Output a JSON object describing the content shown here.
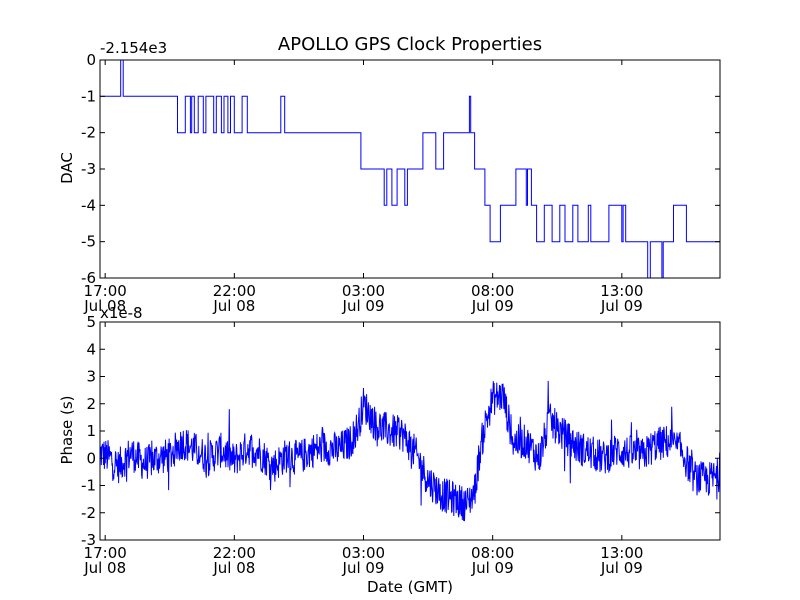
{
  "figure": {
    "title": "APOLLO GPS Clock Properties",
    "xlabel": "Date (GMT)",
    "x_ticks": [
      {
        "time": "17:00",
        "date": "Jul 08"
      },
      {
        "time": "22:00",
        "date": "Jul 08"
      },
      {
        "time": "03:00",
        "date": "Jul 09"
      },
      {
        "time": "08:00",
        "date": "Jul 09"
      },
      {
        "time": "13:00",
        "date": "Jul 09"
      }
    ],
    "x_tick_hours": [
      17,
      22,
      27,
      32,
      37
    ],
    "x_range_hours": [
      16.8,
      40.8
    ]
  },
  "chart_data": [
    {
      "type": "line",
      "ylabel": "DAC",
      "offset_label": "-2.154e3",
      "ylim": [
        -6,
        0
      ],
      "y_ticks": [
        0,
        -1,
        -2,
        -3,
        -4,
        -5,
        -6
      ],
      "x_ticks_hours": [
        17,
        22,
        27,
        32,
        37
      ],
      "color": "#0000ff",
      "series": [
        {
          "x_hours": [
            16.8,
            17.6,
            17.6,
            17.7,
            17.7,
            19.8,
            19.8,
            20.1,
            20.1,
            20.3,
            20.3,
            20.35,
            20.35,
            20.45,
            20.45,
            20.6,
            20.6,
            20.8,
            20.8,
            20.9,
            20.9,
            21.2,
            21.2,
            21.3,
            21.3,
            21.5,
            21.5,
            21.6,
            21.6,
            21.75,
            21.75,
            21.85,
            21.85,
            22.0,
            22.0,
            22.3,
            22.3,
            22.5,
            22.5,
            23.8,
            23.8,
            23.95,
            23.95,
            26.9,
            26.9,
            27.8,
            27.8,
            27.9,
            27.9,
            28.1,
            28.1,
            28.3,
            28.3,
            28.6,
            28.6,
            28.7,
            28.7,
            29.3,
            29.3,
            29.8,
            29.8,
            30.1,
            30.1,
            31.1,
            31.1,
            31.15,
            31.15,
            31.3,
            31.3,
            31.7,
            31.7,
            31.9,
            31.9,
            32.3,
            32.3,
            32.9,
            32.9,
            33.3,
            33.3,
            33.35,
            33.35,
            33.5,
            33.5,
            33.7,
            33.7,
            34.0,
            34.0,
            34.3,
            34.3,
            34.6,
            34.6,
            34.8,
            34.8,
            35.1,
            35.1,
            35.3,
            35.3,
            35.7,
            35.7,
            35.8,
            35.8,
            36.5,
            36.5,
            37.0,
            37.0,
            37.05,
            37.05,
            37.15,
            37.15,
            38.0,
            38.0,
            38.1,
            38.1,
            38.55,
            38.55,
            38.6,
            38.6,
            39.0,
            39.0,
            39.5,
            39.5,
            40.8
          ],
          "y": [
            -1,
            -1,
            0,
            0,
            -1,
            -1,
            -2,
            -2,
            -1,
            -1,
            -2,
            -2,
            -1,
            -1,
            -2,
            -2,
            -1,
            -1,
            -2,
            -2,
            -1,
            -1,
            -2,
            -2,
            -1,
            -1,
            -2,
            -2,
            -1,
            -1,
            -2,
            -2,
            -1,
            -1,
            -2,
            -2,
            -1,
            -1,
            -2,
            -2,
            -1,
            -1,
            -2,
            -2,
            -3,
            -3,
            -4,
            -4,
            -3,
            -3,
            -4,
            -4,
            -3,
            -3,
            -4,
            -4,
            -3,
            -3,
            -2,
            -2,
            -3,
            -3,
            -2,
            -2,
            -1,
            -1,
            -2,
            -2,
            -3,
            -3,
            -4,
            -4,
            -5,
            -5,
            -4,
            -4,
            -3,
            -3,
            -4,
            -4,
            -3,
            -3,
            -4,
            -4,
            -5,
            -5,
            -4,
            -4,
            -5,
            -5,
            -4,
            -4,
            -5,
            -5,
            -4,
            -4,
            -5,
            -5,
            -4,
            -4,
            -5,
            -5,
            -4,
            -4,
            -5,
            -5,
            -4,
            -4,
            -5,
            -5,
            -6,
            -6,
            -5,
            -5,
            -6,
            -6,
            -5,
            -5,
            -4,
            -4,
            -5,
            -5
          ]
        }
      ]
    },
    {
      "type": "line",
      "ylabel": "Phase (s)",
      "offset_label": "x1e-8",
      "ylim": [
        -3,
        5
      ],
      "y_ticks": [
        5,
        4,
        3,
        2,
        1,
        0,
        -1,
        -2,
        -3
      ],
      "x_ticks_hours": [
        17,
        22,
        27,
        32,
        37
      ],
      "color": "#0000ff",
      "series": [
        {
          "x_hours": [
            16.8,
            17.2,
            17.5,
            18.0,
            18.5,
            19.0,
            19.5,
            20.0,
            20.5,
            21.0,
            21.5,
            22.0,
            22.5,
            22.9,
            23.5,
            24.0,
            24.5,
            25.0,
            25.5,
            26.0,
            26.5,
            26.8,
            27.0,
            27.5,
            28.0,
            28.5,
            29.0,
            29.5,
            30.0,
            30.5,
            31.0,
            31.3,
            31.5,
            31.7,
            32.0,
            32.4,
            32.8,
            33.3,
            33.8,
            34.2,
            34.8,
            35.3,
            35.8,
            36.3,
            36.8,
            37.3,
            37.8,
            38.3,
            38.8,
            39.3,
            39.8,
            40.3,
            40.8
          ],
          "y": [
            0.2,
            0.0,
            -0.3,
            0.2,
            -0.2,
            0.0,
            0.1,
            0.6,
            0.3,
            0.0,
            0.3,
            -0.1,
            0.4,
            0.3,
            -0.3,
            0.1,
            0.0,
            0.3,
            0.4,
            0.3,
            0.6,
            1.2,
            2.0,
            1.2,
            1.0,
            0.9,
            0.2,
            -0.8,
            -1.3,
            -1.5,
            -1.7,
            -1.2,
            0.2,
            1.2,
            2.2,
            2.3,
            0.6,
            0.6,
            0.0,
            1.4,
            0.8,
            0.4,
            0.2,
            0.0,
            0.3,
            0.2,
            0.1,
            0.5,
            0.6,
            0.3,
            -0.7,
            -0.8,
            -0.6
          ]
        }
      ]
    }
  ]
}
